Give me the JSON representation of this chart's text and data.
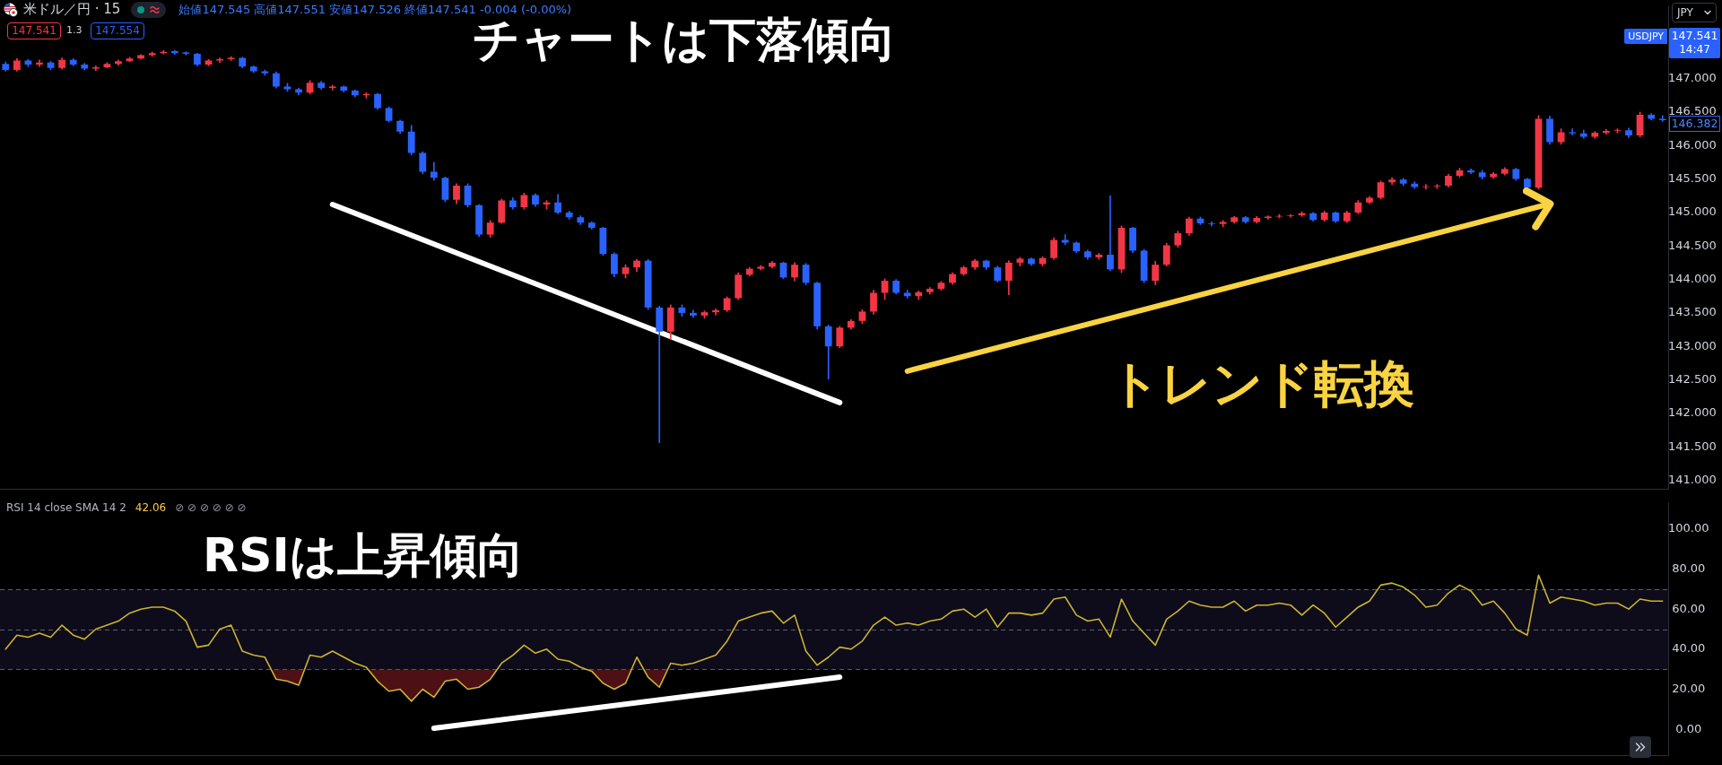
{
  "chart_data": [
    {
      "type": "candlestick",
      "title": "米ドル／円 · 15",
      "subtitle": "始値147.545 高値147.551 安値147.526 終値147.541 -0.004 (-0.00%)",
      "categories": [
        null,
        null,
        null,
        null,
        null,
        null,
        null,
        null,
        null,
        null,
        null,
        null,
        null,
        null,
        null,
        null,
        null,
        null,
        null,
        null,
        null,
        null,
        null,
        null,
        null,
        null,
        null,
        null,
        null,
        null,
        null,
        null,
        null,
        null,
        null,
        null,
        null,
        null,
        null,
        null,
        null,
        null,
        null,
        null,
        null,
        null,
        null,
        null,
        null,
        null,
        null,
        null,
        null,
        null,
        null,
        null,
        null,
        null,
        null,
        null,
        null,
        null,
        null,
        null,
        null,
        null,
        null,
        null,
        null,
        null,
        null,
        null,
        null,
        null,
        null,
        null,
        null,
        null,
        null,
        null,
        null,
        null,
        null,
        null,
        null,
        null,
        null,
        null,
        null,
        null,
        null,
        null,
        null,
        null,
        null,
        null,
        null,
        null,
        null,
        null,
        null,
        null,
        null,
        null,
        null,
        null,
        null,
        null,
        null,
        null,
        null,
        null,
        null,
        null,
        null,
        null,
        null,
        null,
        null,
        null,
        null,
        null,
        null,
        null,
        null,
        null,
        null,
        null,
        null,
        null,
        null,
        null,
        null,
        null,
        null,
        null,
        null,
        null,
        null,
        null,
        null,
        null,
        null,
        null,
        null,
        null,
        null,
        null
      ],
      "ohlc": [
        [
          147.22,
          147.25,
          147.11,
          147.13
        ],
        [
          147.13,
          147.3,
          147.11,
          147.27
        ],
        [
          147.27,
          147.29,
          147.18,
          147.21
        ],
        [
          147.21,
          147.28,
          147.18,
          147.24
        ],
        [
          147.24,
          147.26,
          147.13,
          147.16
        ],
        [
          147.16,
          147.31,
          147.14,
          147.28
        ],
        [
          147.28,
          147.3,
          147.19,
          147.21
        ],
        [
          147.21,
          147.23,
          147.13,
          147.15
        ],
        [
          147.15,
          147.19,
          147.12,
          147.17
        ],
        [
          147.17,
          147.24,
          147.16,
          147.22
        ],
        [
          147.22,
          147.28,
          147.2,
          147.26
        ],
        [
          147.26,
          147.32,
          147.25,
          147.3
        ],
        [
          147.3,
          147.36,
          147.29,
          147.35
        ],
        [
          147.35,
          147.4,
          147.33,
          147.38
        ],
        [
          147.38,
          147.42,
          147.37,
          147.4
        ],
        [
          147.41,
          147.42,
          147.36,
          147.38
        ],
        [
          147.39,
          147.4,
          147.35,
          147.37
        ],
        [
          147.37,
          147.38,
          147.19,
          147.21
        ],
        [
          147.21,
          147.29,
          147.19,
          147.27
        ],
        [
          147.27,
          147.31,
          147.24,
          147.29
        ],
        [
          147.29,
          147.33,
          147.27,
          147.31
        ],
        [
          147.31,
          147.32,
          147.16,
          147.18
        ],
        [
          147.18,
          147.19,
          147.09,
          147.11
        ],
        [
          147.11,
          147.13,
          147.05,
          147.08
        ],
        [
          147.08,
          147.1,
          146.86,
          146.88
        ],
        [
          146.88,
          146.93,
          146.81,
          146.84
        ],
        [
          146.84,
          146.86,
          146.76,
          146.79
        ],
        [
          146.79,
          146.97,
          146.77,
          146.94
        ],
        [
          146.94,
          146.96,
          146.84,
          146.86
        ],
        [
          146.86,
          146.9,
          146.83,
          146.88
        ],
        [
          146.88,
          146.89,
          146.8,
          146.82
        ],
        [
          146.82,
          146.83,
          146.73,
          146.75
        ],
        [
          146.75,
          146.79,
          146.71,
          146.77
        ],
        [
          146.77,
          146.78,
          146.54,
          146.56
        ],
        [
          146.56,
          146.58,
          146.35,
          146.37
        ],
        [
          146.37,
          146.38,
          146.18,
          146.21
        ],
        [
          146.21,
          146.3,
          145.86,
          145.89
        ],
        [
          145.89,
          145.91,
          145.58,
          145.61
        ],
        [
          145.61,
          145.75,
          145.48,
          145.52
        ],
        [
          145.52,
          145.53,
          145.16,
          145.19
        ],
        [
          145.19,
          145.43,
          145.13,
          145.4
        ],
        [
          145.4,
          145.43,
          145.08,
          145.11
        ],
        [
          145.11,
          145.12,
          144.64,
          144.67
        ],
        [
          144.67,
          144.88,
          144.63,
          144.85
        ],
        [
          144.85,
          145.2,
          144.84,
          145.18
        ],
        [
          145.18,
          145.22,
          145.05,
          145.08
        ],
        [
          145.08,
          145.29,
          145.05,
          145.26
        ],
        [
          145.26,
          145.28,
          145.09,
          145.12
        ],
        [
          145.12,
          145.18,
          145.05,
          145.15
        ],
        [
          145.15,
          145.27,
          144.98,
          145.0
        ],
        [
          145.0,
          145.02,
          144.9,
          144.93
        ],
        [
          144.93,
          144.95,
          144.82,
          144.85
        ],
        [
          144.85,
          144.86,
          144.75,
          144.77
        ],
        [
          144.77,
          144.78,
          144.36,
          144.38
        ],
        [
          144.38,
          144.4,
          144.04,
          144.08
        ],
        [
          144.08,
          144.22,
          144.02,
          144.18
        ],
        [
          144.18,
          144.3,
          144.12,
          144.28
        ],
        [
          144.28,
          144.3,
          143.55,
          143.58
        ],
        [
          143.58,
          143.6,
          141.56,
          143.22
        ],
        [
          143.22,
          143.62,
          143.1,
          143.58
        ],
        [
          143.58,
          143.62,
          143.45,
          143.5
        ],
        [
          143.5,
          143.54,
          143.43,
          143.46
        ],
        [
          143.46,
          143.53,
          143.42,
          143.51
        ],
        [
          143.51,
          143.56,
          143.47,
          143.54
        ],
        [
          143.54,
          143.74,
          143.52,
          143.72
        ],
        [
          143.72,
          144.1,
          143.7,
          144.07
        ],
        [
          144.07,
          144.18,
          144.05,
          144.16
        ],
        [
          144.16,
          144.21,
          144.14,
          144.19
        ],
        [
          144.19,
          144.27,
          144.17,
          144.25
        ],
        [
          144.25,
          144.26,
          144.01,
          144.03
        ],
        [
          144.03,
          144.25,
          143.98,
          144.22
        ],
        [
          144.22,
          144.24,
          143.92,
          143.95
        ],
        [
          143.95,
          143.96,
          143.26,
          143.3
        ],
        [
          143.3,
          143.32,
          142.51,
          143.0
        ],
        [
          143.0,
          143.3,
          142.98,
          143.28
        ],
        [
          143.28,
          143.4,
          143.26,
          143.38
        ],
        [
          143.38,
          143.55,
          143.34,
          143.52
        ],
        [
          143.52,
          143.84,
          143.48,
          143.8
        ],
        [
          143.8,
          144.01,
          143.7,
          143.98
        ],
        [
          143.98,
          144.0,
          143.78,
          143.8
        ],
        [
          143.8,
          143.84,
          143.72,
          143.75
        ],
        [
          143.75,
          143.83,
          143.7,
          143.81
        ],
        [
          143.81,
          143.88,
          143.78,
          143.86
        ],
        [
          143.86,
          143.97,
          143.84,
          143.95
        ],
        [
          143.95,
          144.1,
          143.93,
          144.08
        ],
        [
          144.08,
          144.2,
          144.06,
          144.18
        ],
        [
          144.18,
          144.3,
          144.15,
          144.28
        ],
        [
          144.28,
          144.29,
          144.15,
          144.18
        ],
        [
          144.18,
          144.2,
          143.96,
          143.98
        ],
        [
          143.98,
          144.28,
          143.77,
          144.25
        ],
        [
          144.25,
          144.33,
          144.2,
          144.31
        ],
        [
          144.31,
          144.32,
          144.21,
          144.23
        ],
        [
          144.23,
          144.34,
          144.2,
          144.32
        ],
        [
          144.32,
          144.62,
          144.3,
          144.59
        ],
        [
          144.59,
          144.67,
          144.52,
          144.55
        ],
        [
          144.55,
          144.56,
          144.4,
          144.42
        ],
        [
          144.42,
          144.44,
          144.3,
          144.33
        ],
        [
          144.33,
          144.39,
          144.3,
          144.37
        ],
        [
          144.37,
          145.25,
          144.13,
          144.15
        ],
        [
          144.15,
          144.8,
          144.1,
          144.77
        ],
        [
          144.77,
          144.78,
          144.4,
          144.43
        ],
        [
          144.43,
          144.45,
          143.95,
          143.98
        ],
        [
          143.98,
          144.27,
          143.92,
          144.22
        ],
        [
          144.22,
          144.54,
          144.2,
          144.51
        ],
        [
          144.51,
          144.72,
          144.48,
          144.69
        ],
        [
          144.69,
          144.93,
          144.66,
          144.91
        ],
        [
          144.91,
          144.93,
          144.82,
          144.84
        ],
        [
          144.84,
          144.86,
          144.8,
          144.83
        ],
        [
          144.83,
          144.88,
          144.79,
          144.86
        ],
        [
          144.86,
          144.94,
          144.84,
          144.93
        ],
        [
          144.93,
          144.94,
          144.84,
          144.86
        ],
        [
          144.86,
          144.94,
          144.84,
          144.92
        ],
        [
          144.92,
          144.95,
          144.9,
          144.94
        ],
        [
          144.94,
          144.97,
          144.92,
          144.95
        ],
        [
          144.95,
          144.97,
          144.93,
          144.96
        ],
        [
          144.96,
          145.01,
          144.94,
          144.99
        ],
        [
          144.99,
          145.0,
          144.87,
          144.89
        ],
        [
          144.89,
          145.02,
          144.87,
          145.0
        ],
        [
          145.0,
          145.01,
          144.85,
          144.87
        ],
        [
          144.87,
          145.02,
          144.85,
          145.0
        ],
        [
          145.0,
          145.18,
          144.98,
          145.15
        ],
        [
          145.15,
          145.24,
          145.13,
          145.22
        ],
        [
          145.22,
          145.47,
          145.2,
          145.45
        ],
        [
          145.45,
          145.52,
          145.42,
          145.49
        ],
        [
          145.49,
          145.51,
          145.4,
          145.43
        ],
        [
          145.43,
          145.46,
          145.36,
          145.38
        ],
        [
          145.38,
          145.42,
          145.35,
          145.39
        ],
        [
          145.39,
          145.42,
          145.36,
          145.4
        ],
        [
          145.4,
          145.57,
          145.38,
          145.55
        ],
        [
          145.55,
          145.66,
          145.53,
          145.63
        ],
        [
          145.63,
          145.65,
          145.58,
          145.6
        ],
        [
          145.6,
          145.63,
          145.5,
          145.53
        ],
        [
          145.53,
          145.6,
          145.51,
          145.58
        ],
        [
          145.58,
          145.67,
          145.56,
          145.65
        ],
        [
          145.65,
          145.66,
          145.48,
          145.5
        ],
        [
          145.5,
          145.51,
          145.34,
          145.37
        ],
        [
          145.37,
          146.45,
          145.35,
          146.4
        ],
        [
          146.4,
          146.44,
          146.02,
          146.05
        ],
        [
          146.05,
          146.25,
          146.02,
          146.2
        ],
        [
          146.2,
          146.25,
          146.16,
          146.18
        ],
        [
          146.18,
          146.23,
          146.11,
          146.13
        ],
        [
          146.13,
          146.21,
          146.11,
          146.19
        ],
        [
          146.19,
          146.24,
          146.17,
          146.22
        ],
        [
          146.22,
          146.25,
          146.19,
          146.23
        ],
        [
          146.23,
          146.26,
          146.12,
          146.15
        ],
        [
          146.15,
          146.5,
          146.13,
          146.46
        ],
        [
          146.46,
          146.48,
          146.38,
          146.4
        ],
        [
          146.4,
          146.45,
          146.36,
          146.38
        ]
      ],
      "colors": [
        "#2962ff",
        "#f23645",
        "#2962ff",
        "#f23645",
        "#2962ff",
        "#f23645",
        "#2962ff",
        "#2962ff",
        "#f23645",
        "#f23645",
        "#f23645",
        "#f23645",
        "#f23645",
        "#f23645",
        "#f23645",
        "#2962ff",
        "#2962ff",
        "#2962ff",
        "#f23645",
        "#f23645",
        "#f23645",
        "#2962ff",
        "#2962ff",
        "#2962ff",
        "#2962ff",
        "#2962ff",
        "#2962ff",
        "#f23645",
        "#2962ff",
        "#f23645",
        "#2962ff",
        "#2962ff",
        "#f23645",
        "#2962ff",
        "#2962ff",
        "#2962ff",
        "#2962ff",
        "#2962ff",
        "#2962ff",
        "#2962ff",
        "#f23645",
        "#2962ff",
        "#2962ff",
        "#f23645",
        "#f23645",
        "#2962ff",
        "#f23645",
        "#2962ff",
        "#f23645",
        "#2962ff",
        "#2962ff",
        "#2962ff",
        "#2962ff",
        "#2962ff",
        "#2962ff",
        "#f23645",
        "#f23645",
        "#2962ff",
        "#2962ff",
        "#f23645",
        "#2962ff",
        "#2962ff",
        "#f23645",
        "#f23645",
        "#f23645",
        "#f23645",
        "#f23645",
        "#f23645",
        "#f23645",
        "#2962ff",
        "#f23645",
        "#2962ff",
        "#2962ff",
        "#2962ff",
        "#f23645",
        "#f23645",
        "#f23645",
        "#f23645",
        "#f23645",
        "#2962ff",
        "#2962ff",
        "#f23645",
        "#f23645",
        "#f23645",
        "#f23645",
        "#f23645",
        "#f23645",
        "#2962ff",
        "#2962ff",
        "#f23645",
        "#f23645",
        "#2962ff",
        "#f23645",
        "#f23645",
        "#2962ff",
        "#2962ff",
        "#2962ff",
        "#f23645",
        "#2962ff",
        "#f23645",
        "#2962ff",
        "#2962ff",
        "#f23645",
        "#f23645",
        "#f23645",
        "#f23645",
        "#2962ff",
        "#2962ff",
        "#f23645",
        "#f23645",
        "#2962ff",
        "#f23645",
        "#f23645",
        "#f23645",
        "#f23645",
        "#f23645",
        "#2962ff",
        "#f23645",
        "#2962ff",
        "#f23645",
        "#f23645",
        "#f23645",
        "#f23645",
        "#f23645",
        "#2962ff",
        "#2962ff",
        "#f23645",
        "#f23645",
        "#f23645",
        "#f23645",
        "#2962ff",
        "#2962ff",
        "#f23645",
        "#f23645",
        "#2962ff",
        "#2962ff",
        "#f23645",
        "#2962ff",
        "#f23645",
        "#2962ff",
        "#2962ff",
        "#f23645",
        "#f23645",
        "#f23645",
        "#2962ff",
        "#f23645",
        "#2962ff",
        "#2962ff"
      ],
      "series": [
        {
          "type": "line",
          "color": "#ffffff",
          "values": [
            null,
            null,
            null,
            null,
            null,
            null,
            null,
            null,
            null,
            null,
            null,
            null,
            null,
            null,
            null,
            null,
            null,
            null,
            null,
            null,
            null,
            null,
            null,
            null,
            null,
            null,
            null,
            null,
            null,
            145.12,
            null,
            null,
            null,
            null,
            null,
            null,
            null,
            null,
            null,
            null,
            null,
            null,
            null,
            null,
            null,
            null,
            null,
            null,
            null,
            null,
            null,
            null,
            null,
            null,
            null,
            null,
            null,
            null,
            null,
            null,
            null,
            null,
            null,
            null,
            null,
            null,
            null,
            null,
            null,
            null,
            null,
            null,
            null,
            null,
            142.16,
            null,
            null,
            null,
            null,
            null,
            null,
            null,
            null,
            null,
            null,
            null,
            null,
            null,
            null,
            null,
            null,
            null,
            null,
            null,
            null,
            null,
            null,
            null,
            null,
            null,
            null,
            null,
            null,
            null,
            null,
            null,
            null,
            null,
            null,
            null,
            null,
            null,
            null,
            null,
            null,
            null,
            null,
            null,
            null,
            null,
            null,
            null,
            null,
            null,
            null,
            null,
            null,
            null,
            null,
            null,
            null,
            null,
            null,
            null,
            null,
            null,
            null,
            null,
            null,
            null,
            null,
            null,
            null,
            null,
            null,
            null,
            null,
            null
          ]
        },
        {
          "type": "line",
          "color": "#f9d342",
          "values": [
            null,
            null,
            null,
            null,
            null,
            null,
            null,
            null,
            null,
            null,
            null,
            null,
            null,
            null,
            null,
            null,
            null,
            null,
            null,
            null,
            null,
            null,
            null,
            null,
            null,
            null,
            null,
            null,
            null,
            null,
            null,
            null,
            null,
            null,
            null,
            null,
            null,
            null,
            null,
            null,
            null,
            null,
            null,
            null,
            null,
            null,
            null,
            null,
            null,
            null,
            null,
            null,
            null,
            null,
            null,
            null,
            null,
            null,
            null,
            null,
            null,
            null,
            null,
            null,
            null,
            null,
            null,
            null,
            null,
            null,
            null,
            null,
            null,
            null,
            null,
            null,
            null,
            null,
            null,
            null,
            142.63,
            null,
            null,
            null,
            null,
            null,
            null,
            null,
            null,
            null,
            null,
            null,
            null,
            null,
            null,
            null,
            null,
            null,
            null,
            null,
            null,
            null,
            null,
            null,
            null,
            null,
            null,
            null,
            null,
            null,
            null,
            null,
            null,
            null,
            null,
            null,
            null,
            null,
            null,
            null,
            null,
            null,
            null,
            null,
            null,
            null,
            null,
            null,
            null,
            null,
            null,
            null,
            null,
            null,
            null,
            null,
            null,
            145.13,
            null,
            null,
            null,
            null,
            null,
            null,
            null,
            null,
            null,
            null
          ]
        }
      ],
      "ylim": [
        140.87,
        148.07
      ],
      "yticks": [
        {
          "value": 141,
          "label": "141.000"
        },
        {
          "value": 141.5,
          "label": "141.500"
        },
        {
          "value": 142,
          "label": "142.000"
        },
        {
          "value": 142.5,
          "label": "142.500"
        },
        {
          "value": 143,
          "label": "143.000"
        },
        {
          "value": 143.5,
          "label": "143.500"
        },
        {
          "value": 144,
          "label": "144.000"
        },
        {
          "value": 144.5,
          "label": "144.500"
        },
        {
          "value": 145,
          "label": "145.000"
        },
        {
          "value": 145.5,
          "label": "145.500"
        },
        {
          "value": 146,
          "label": "146.000"
        },
        {
          "value": 146.5,
          "label": "146.500"
        },
        {
          "value": 147,
          "label": "147.000"
        }
      ],
      "tick_labels": "y",
      "annotations": [
        "チャートは下落傾向",
        "トレンド転換",
        "147.541",
        "14:47",
        "USDJPY",
        "146.382",
        "147.541",
        "1.3",
        "147.554",
        "JPY"
      ]
    },
    {
      "type": "line",
      "title": "RSI 14 close SMA 14 2",
      "categories": [
        null,
        null,
        null,
        null,
        null,
        null,
        null,
        null,
        null,
        null,
        null,
        null,
        null,
        null,
        null,
        null,
        null,
        null,
        null,
        null,
        null,
        null,
        null,
        null,
        null,
        null,
        null,
        null,
        null,
        null,
        null,
        null,
        null,
        null,
        null,
        null,
        null,
        null,
        null,
        null,
        null,
        null,
        null,
        null,
        null,
        null,
        null,
        null,
        null,
        null,
        null,
        null,
        null,
        null,
        null,
        null,
        null,
        null,
        null,
        null,
        null,
        null,
        null,
        null,
        null,
        null,
        null,
        null,
        null,
        null,
        null,
        null,
        null,
        null,
        null,
        null,
        null,
        null,
        null,
        null,
        null,
        null,
        null,
        null,
        null,
        null,
        null,
        null,
        null,
        null,
        null,
        null,
        null,
        null,
        null,
        null,
        null,
        null,
        null,
        null,
        null,
        null,
        null,
        null,
        null,
        null,
        null,
        null,
        null,
        null,
        null,
        null,
        null,
        null,
        null,
        null,
        null,
        null,
        null,
        null,
        null,
        null,
        null,
        null,
        null,
        null,
        null,
        null,
        null,
        null,
        null,
        null,
        null,
        null,
        null,
        null,
        null,
        null,
        null,
        null,
        null,
        null,
        null,
        null,
        null,
        null,
        null,
        null
      ],
      "series": [
        {
          "color": "#c9b430",
          "values": [
            40,
            47,
            46,
            48,
            46,
            52,
            47,
            45,
            50,
            52,
            54,
            58,
            60,
            61,
            61,
            59,
            54,
            41,
            42,
            50,
            52,
            39,
            37,
            36,
            25,
            24,
            22,
            37,
            36,
            39,
            36,
            33,
            31,
            24,
            19,
            20,
            14,
            20,
            16,
            24,
            25,
            20,
            21,
            25,
            33,
            37,
            42,
            38,
            40,
            35,
            34,
            31,
            29,
            23,
            20,
            23,
            36,
            26,
            21,
            33,
            32,
            33,
            35,
            37,
            44,
            54,
            56,
            58,
            59,
            53,
            57,
            39,
            32,
            36,
            41,
            40,
            44,
            52,
            56,
            52,
            53,
            52,
            54,
            55,
            59,
            60,
            56,
            60,
            51,
            58,
            58,
            57,
            58,
            65,
            66,
            57,
            54,
            55,
            46,
            65,
            54,
            48,
            42,
            55,
            59,
            64,
            62,
            61,
            61,
            64,
            59,
            62,
            62,
            63,
            62,
            57,
            62,
            58,
            51,
            56,
            61,
            64,
            72,
            73,
            71,
            67,
            61,
            62,
            68,
            72,
            69,
            62,
            64,
            58,
            50,
            47,
            77,
            63,
            66,
            65,
            64,
            62,
            63,
            63,
            60,
            65,
            64,
            64
          ]
        },
        {
          "type": "line",
          "color": "#ffffff",
          "values": [
            null,
            null,
            null,
            null,
            null,
            null,
            null,
            null,
            null,
            null,
            null,
            null,
            null,
            null,
            null,
            null,
            null,
            null,
            null,
            null,
            null,
            null,
            null,
            null,
            null,
            null,
            null,
            null,
            null,
            null,
            null,
            null,
            null,
            null,
            null,
            null,
            null,
            null,
            0.5,
            null,
            null,
            null,
            null,
            null,
            null,
            null,
            null,
            null,
            null,
            null,
            null,
            null,
            null,
            null,
            null,
            null,
            null,
            null,
            null,
            null,
            null,
            null,
            null,
            null,
            null,
            null,
            null,
            null,
            null,
            null,
            null,
            null,
            null,
            null,
            26,
            null,
            null,
            null,
            null,
            null,
            null,
            null,
            null,
            null,
            null,
            null,
            null,
            null,
            null,
            null,
            null,
            null,
            null,
            null,
            null,
            null,
            null,
            null,
            null,
            null,
            null,
            null,
            null,
            null,
            null,
            null,
            null,
            null,
            null,
            null,
            null,
            null,
            null,
            null,
            null,
            null,
            null,
            null,
            null,
            null,
            null,
            null,
            null,
            null,
            null,
            null,
            null,
            null,
            null,
            null,
            null,
            null,
            null,
            null,
            null,
            null,
            null,
            null,
            null,
            null,
            null,
            null,
            null,
            null,
            null,
            null,
            null,
            null
          ]
        }
      ],
      "ylim": [
        -13,
        113
      ],
      "yticks": [
        {
          "value": 0,
          "label": "0.00"
        },
        {
          "value": 20,
          "label": "20.00"
        },
        {
          "value": 40,
          "label": "40.00"
        },
        {
          "value": 60,
          "label": "60.00"
        },
        {
          "value": 80,
          "label": "80.00"
        },
        {
          "value": 100,
          "label": "100.00"
        }
      ],
      "tick_labels": "y",
      "bands": [
        {
          "axis": "y",
          "from": 30,
          "to": 70,
          "color": "#0e0b1a"
        }
      ],
      "ref_lines": [
        {
          "axis": "y",
          "value": 70,
          "line_style": "dashed",
          "color": "#5d606b"
        },
        {
          "axis": "y",
          "value": 50,
          "line_style": "dashed",
          "color": "#5d606b"
        },
        {
          "axis": "y",
          "value": 30,
          "line_style": "dashed",
          "color": "#5d606b"
        }
      ],
      "annotations": [
        "RSIは上昇傾向",
        "42.06",
        "⊘ ⊘ ⊘ ⊘ ⊘ ⊘"
      ]
    }
  ]
}
